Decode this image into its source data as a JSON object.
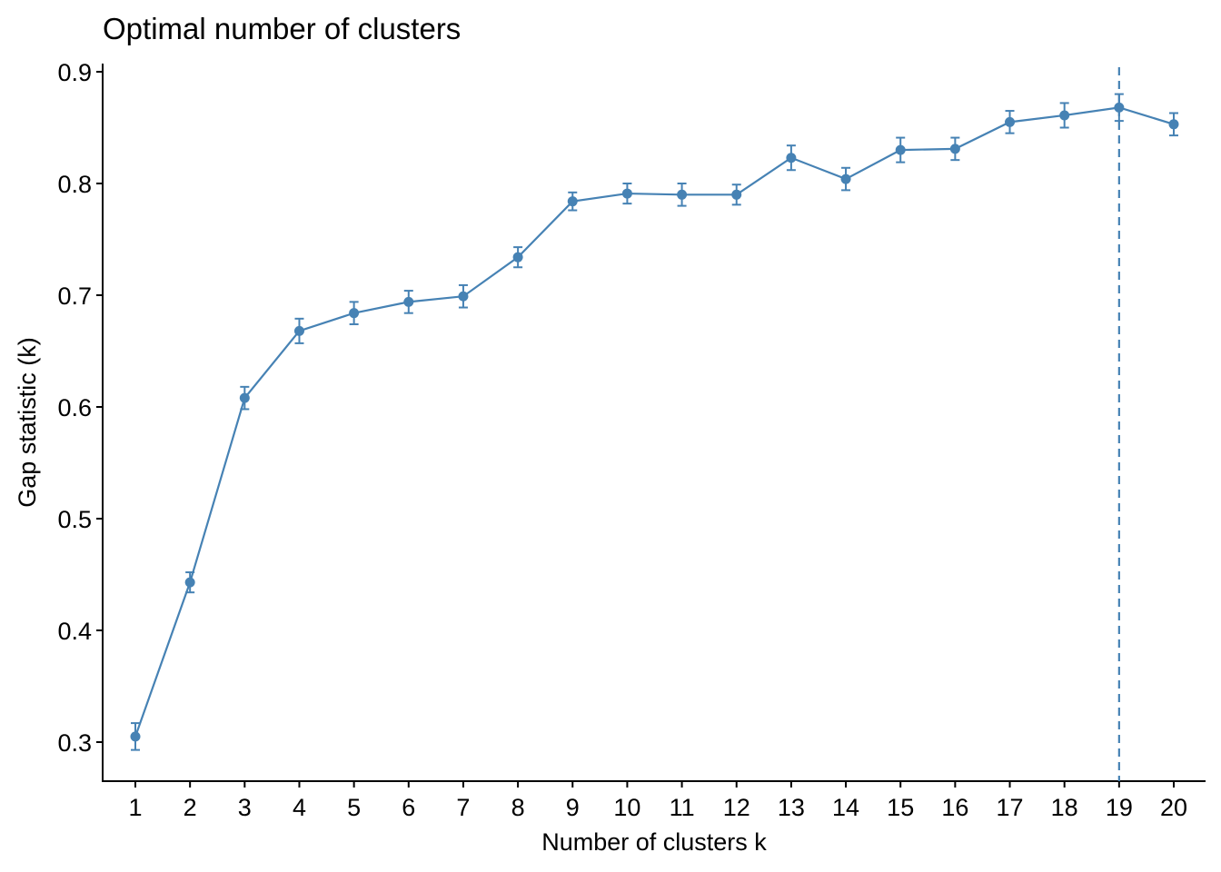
{
  "chart_data": {
    "type": "line",
    "title": "Optimal number of clusters",
    "xlabel": "Number of clusters k",
    "ylabel": "Gap statistic (k)",
    "x": [
      1,
      2,
      3,
      4,
      5,
      6,
      7,
      8,
      9,
      10,
      11,
      12,
      13,
      14,
      15,
      16,
      17,
      18,
      19,
      20
    ],
    "xticks": [
      "1",
      "2",
      "3",
      "4",
      "5",
      "6",
      "7",
      "8",
      "9",
      "10",
      "11",
      "12",
      "13",
      "14",
      "15",
      "16",
      "17",
      "18",
      "19",
      "20"
    ],
    "yticks": [
      "0.3",
      "0.4",
      "0.5",
      "0.6",
      "0.7",
      "0.8",
      "0.9"
    ],
    "ylim": [
      0.265,
      0.907
    ],
    "series": [
      {
        "values": [
          0.305,
          0.443,
          0.608,
          0.668,
          0.684,
          0.694,
          0.699,
          0.734,
          0.784,
          0.791,
          0.79,
          0.79,
          0.823,
          0.804,
          0.83,
          0.831,
          0.855,
          0.861,
          0.868,
          0.853
        ],
        "errors": [
          0.012,
          0.009,
          0.01,
          0.011,
          0.01,
          0.01,
          0.01,
          0.009,
          0.008,
          0.009,
          0.01,
          0.009,
          0.011,
          0.01,
          0.011,
          0.01,
          0.01,
          0.011,
          0.012,
          0.01
        ]
      }
    ],
    "vline_x": 19,
    "color": "#4682B4",
    "grid": false
  }
}
